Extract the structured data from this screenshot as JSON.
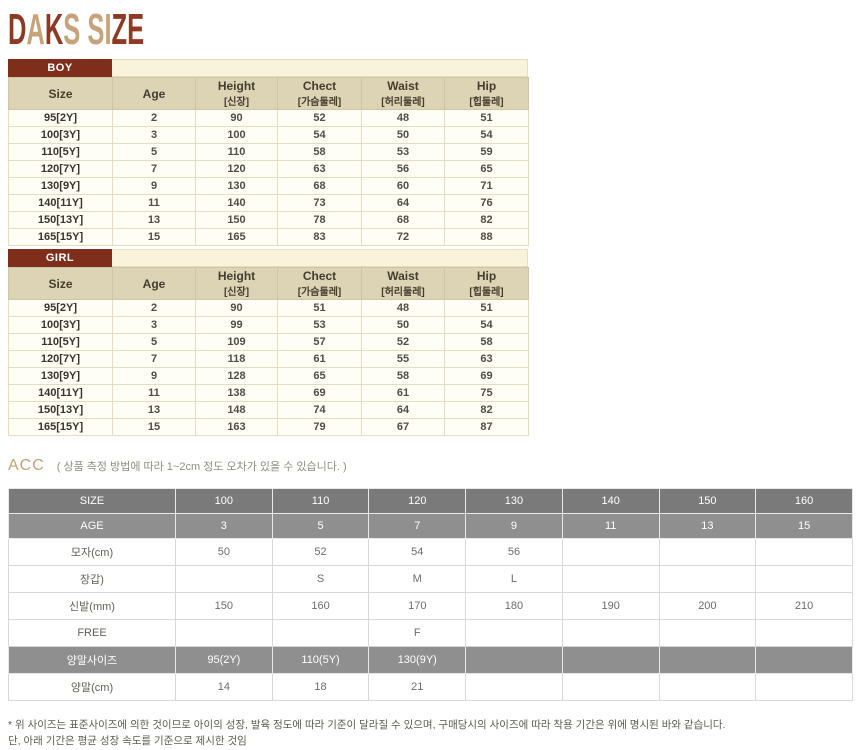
{
  "logo": {
    "text": "DAKS SIZE",
    "letters": [
      {
        "ch": "D",
        "color": "logo_maroon"
      },
      {
        "ch": "A",
        "color": "logo_tan"
      },
      {
        "ch": "K",
        "color": "logo_maroon"
      },
      {
        "ch": "S",
        "color": "logo_tan"
      },
      {
        "ch": " ",
        "color": "logo_tan"
      },
      {
        "ch": "S",
        "color": "logo_tan"
      },
      {
        "ch": "I",
        "color": "logo_tan"
      },
      {
        "ch": "Z",
        "color": "logo_maroon"
      },
      {
        "ch": "E",
        "color": "logo_maroon"
      }
    ]
  },
  "size_tables": [
    {
      "tab": "BOY",
      "headers": [
        {
          "en": "Size",
          "kr": ""
        },
        {
          "en": "Age",
          "kr": ""
        },
        {
          "en": "Height",
          "kr": "[신장]"
        },
        {
          "en": "Chect",
          "kr": "[가슴둘레]"
        },
        {
          "en": "Waist",
          "kr": "[허리둘레]"
        },
        {
          "en": "Hip",
          "kr": "[힙둘레]"
        }
      ],
      "rows": [
        [
          "95[2Y]",
          "2",
          "90",
          "52",
          "48",
          "51"
        ],
        [
          "100[3Y]",
          "3",
          "100",
          "54",
          "50",
          "54"
        ],
        [
          "110[5Y]",
          "5",
          "110",
          "58",
          "53",
          "59"
        ],
        [
          "120[7Y]",
          "7",
          "120",
          "63",
          "56",
          "65"
        ],
        [
          "130[9Y]",
          "9",
          "130",
          "68",
          "60",
          "71"
        ],
        [
          "140[11Y]",
          "11",
          "140",
          "73",
          "64",
          "76"
        ],
        [
          "150[13Y]",
          "13",
          "150",
          "78",
          "68",
          "82"
        ],
        [
          "165[15Y]",
          "15",
          "165",
          "83",
          "72",
          "88"
        ]
      ]
    },
    {
      "tab": "GIRL",
      "headers": [
        {
          "en": "Size",
          "kr": ""
        },
        {
          "en": "Age",
          "kr": ""
        },
        {
          "en": "Height",
          "kr": "[신장]"
        },
        {
          "en": "Chect",
          "kr": "[가슴둘레]"
        },
        {
          "en": "Waist",
          "kr": "[허리둘레]"
        },
        {
          "en": "Hip",
          "kr": "[힙둘레]"
        }
      ],
      "rows": [
        [
          "95[2Y]",
          "2",
          "90",
          "51",
          "48",
          "51"
        ],
        [
          "100[3Y]",
          "3",
          "99",
          "53",
          "50",
          "54"
        ],
        [
          "110[5Y]",
          "5",
          "109",
          "57",
          "52",
          "58"
        ],
        [
          "120[7Y]",
          "7",
          "118",
          "61",
          "55",
          "63"
        ],
        [
          "130[9Y]",
          "9",
          "128",
          "65",
          "58",
          "69"
        ],
        [
          "140[11Y]",
          "11",
          "138",
          "69",
          "61",
          "75"
        ],
        [
          "150[13Y]",
          "13",
          "148",
          "74",
          "64",
          "82"
        ],
        [
          "165[15Y]",
          "15",
          "163",
          "79",
          "67",
          "87"
        ]
      ]
    }
  ],
  "acc": {
    "title": "ACC",
    "note": "( 상품 측정 방법에 따라 1~2cm 정도 오차가 있을 수 있습니다. )",
    "header_rows": [
      {
        "label": "SIZE",
        "values": [
          "100",
          "110",
          "120",
          "130",
          "140",
          "150",
          "160"
        ]
      },
      {
        "label": "AGE",
        "values": [
          "3",
          "5",
          "7",
          "9",
          "11",
          "13",
          "15"
        ]
      }
    ],
    "rows": [
      {
        "label": "모자(cm)",
        "type": "data",
        "values": [
          "50",
          "52",
          "54",
          "56",
          "",
          "",
          ""
        ]
      },
      {
        "label": "장갑)",
        "type": "data",
        "values": [
          "",
          "S",
          "M",
          "L",
          "",
          "",
          ""
        ]
      },
      {
        "label": "신발(mm)",
        "type": "data",
        "values": [
          "150",
          "160",
          "170",
          "180",
          "190",
          "200",
          "210"
        ]
      },
      {
        "label": "FREE",
        "type": "data",
        "values": [
          "",
          "",
          "F",
          "",
          "",
          "",
          ""
        ]
      },
      {
        "label": "양말사이즈",
        "type": "gray",
        "values": [
          "95(2Y)",
          "110(5Y)",
          "130(9Y)",
          "",
          "",
          "",
          ""
        ]
      },
      {
        "label": "양말(cm)",
        "type": "data",
        "values": [
          "14",
          "18",
          "21",
          "",
          "",
          "",
          ""
        ]
      }
    ]
  },
  "footnote": {
    "line1": "* 위 사이즈는 표준사이즈에 의한 것이므로 아이의 성장, 발육 정도에 따라 기준이 달라질 수 있으며, 구매당시의 사이즈에 따라 착용 기간은 위에 명시된 바와 같습니다.",
    "line2": "단, 아래 기간은 평균 성장 속도를 기준으로 제시한 것임"
  },
  "colors": {
    "maroon": "#7e2e1b",
    "logo_maroon": "#8e3a22",
    "logo_tan": "#c7a379",
    "header_bg": "#ddd3b5",
    "header_text": "#453d2e",
    "strip_bg": "#faf3dc",
    "cell_bg": "#fffef6",
    "cell_border": "#e6dcbf",
    "cell_text": "#504d44",
    "acc_title": "#c5a077",
    "gray_dark": "#7a7a7a",
    "gray_mid": "#8f8f8f",
    "acc_text": "#6b6b6b",
    "acc_border": "#d8d8d8",
    "note_text": "#8d8d85",
    "footnote_text": "#5a5a54"
  }
}
